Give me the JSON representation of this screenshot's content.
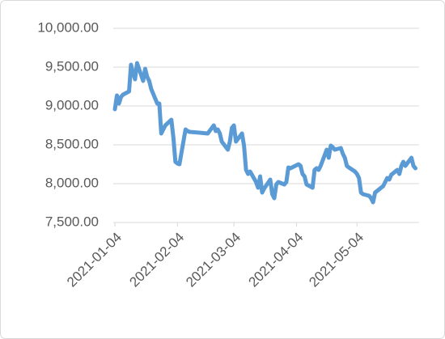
{
  "chart_data": {
    "type": "line",
    "color": "#5b9bd5",
    "grid": true,
    "x": [
      "2021-01-04",
      "2021-01-05",
      "2021-01-06",
      "2021-01-07",
      "2021-01-08",
      "2021-01-11",
      "2021-01-12",
      "2021-01-13",
      "2021-01-14",
      "2021-01-15",
      "2021-01-18",
      "2021-01-19",
      "2021-01-20",
      "2021-01-21",
      "2021-01-22",
      "2021-01-25",
      "2021-01-26",
      "2021-01-27",
      "2021-01-28",
      "2021-01-29",
      "2021-02-01",
      "2021-02-02",
      "2021-02-03",
      "2021-02-04",
      "2021-02-05",
      "2021-02-08",
      "2021-02-09",
      "2021-02-10",
      "2021-02-15",
      "2021-02-19",
      "2021-02-22",
      "2021-02-23",
      "2021-02-24",
      "2021-02-25",
      "2021-02-26",
      "2021-03-01",
      "2021-03-02",
      "2021-03-03",
      "2021-03-04",
      "2021-03-05",
      "2021-03-08",
      "2021-03-09",
      "2021-03-10",
      "2021-03-11",
      "2021-03-12",
      "2021-03-15",
      "2021-03-16",
      "2021-03-17",
      "2021-03-18",
      "2021-03-19",
      "2021-03-22",
      "2021-03-23",
      "2021-03-24",
      "2021-03-25",
      "2021-03-26",
      "2021-03-29",
      "2021-03-30",
      "2021-03-31",
      "2021-04-01",
      "2021-04-05",
      "2021-04-06",
      "2021-04-07",
      "2021-04-08",
      "2021-04-09",
      "2021-04-12",
      "2021-04-13",
      "2021-04-14",
      "2021-04-15",
      "2021-04-16",
      "2021-04-19",
      "2021-04-20",
      "2021-04-21",
      "2021-04-22",
      "2021-04-23",
      "2021-04-26",
      "2021-04-27",
      "2021-04-28",
      "2021-04-29",
      "2021-04-30",
      "2021-05-03",
      "2021-05-04",
      "2021-05-05",
      "2021-05-06",
      "2021-05-07",
      "2021-05-10",
      "2021-05-11",
      "2021-05-12",
      "2021-05-13",
      "2021-05-14",
      "2021-05-17",
      "2021-05-18",
      "2021-05-19",
      "2021-05-20",
      "2021-05-21",
      "2021-05-24",
      "2021-05-25",
      "2021-05-26",
      "2021-05-27",
      "2021-05-28",
      "2021-05-31",
      "2021-06-01",
      "2021-06-02"
    ],
    "values": [
      8958,
      9135,
      9031,
      9115,
      9146,
      9188,
      9531,
      9427,
      9344,
      9552,
      9323,
      9479,
      9375,
      9323,
      9219,
      9031,
      9031,
      8646,
      8698,
      8750,
      8823,
      8594,
      8281,
      8260,
      8250,
      8698,
      8677,
      8667,
      8656,
      8646,
      8750,
      8677,
      8698,
      8646,
      8542,
      8438,
      8542,
      8719,
      8750,
      8542,
      8646,
      8490,
      8177,
      8125,
      8156,
      8021,
      7948,
      8094,
      7885,
      7938,
      8052,
      7865,
      7813,
      7990,
      8021,
      7990,
      8021,
      8208,
      8198,
      8250,
      8229,
      8125,
      8094,
      7990,
      7948,
      8177,
      8198,
      8177,
      8229,
      8438,
      8333,
      8490,
      8469,
      8438,
      8458,
      8385,
      8333,
      8229,
      8208,
      8156,
      8125,
      8073,
      7885,
      7865,
      7844,
      7813,
      7760,
      7885,
      7906,
      7969,
      8021,
      8073,
      8052,
      8115,
      8177,
      8125,
      8229,
      8281,
      8229,
      8333,
      8229,
      8198
    ],
    "xlim": [
      "2021-01-04",
      "2021-06-03"
    ],
    "xticks": [
      "2021-01-04",
      "2021-02-04",
      "2021-03-04",
      "2021-04-04",
      "2021-05-04"
    ],
    "ylim": [
      7500,
      10000
    ],
    "yticks": [
      {
        "value": 7500,
        "label": "7,500.00"
      },
      {
        "value": 8000,
        "label": "8,000.00"
      },
      {
        "value": 8500,
        "label": "8,500.00"
      },
      {
        "value": 9000,
        "label": "9,000.00"
      },
      {
        "value": 9500,
        "label": "9,500.00"
      },
      {
        "value": 10000,
        "label": "10,000.00"
      }
    ]
  }
}
